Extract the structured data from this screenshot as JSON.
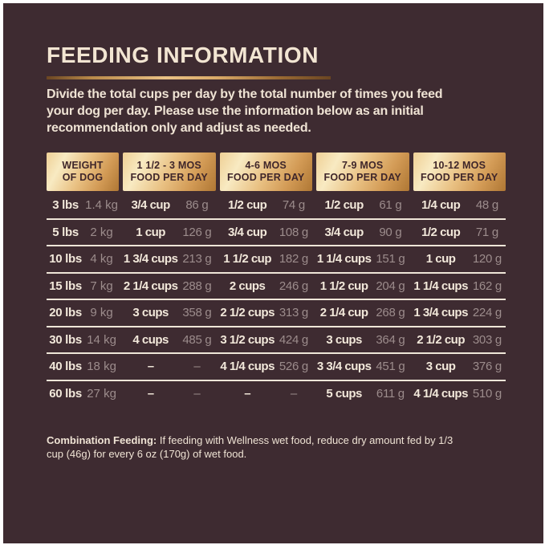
{
  "title": "FEEDING INFORMATION",
  "intro": {
    "line1": "Divide the total cups per day by the total number of times you feed",
    "line2": "your dog per day. Please use the information below as an initial",
    "line3": "recommendation only and adjust as needed."
  },
  "table": {
    "headers": [
      {
        "line1": "WEIGHT",
        "line2": "OF DOG"
      },
      {
        "line1": "1 1/2 - 3 MOS",
        "line2": "FOOD PER DAY"
      },
      {
        "line1": "4-6 MOS",
        "line2": "FOOD PER DAY"
      },
      {
        "line1": "7-9 MOS",
        "line2": "FOOD PER DAY"
      },
      {
        "line1": "10-12 MOS",
        "line2": "FOOD PER DAY"
      }
    ],
    "rows": [
      {
        "lbs": "3 lbs",
        "kg": "1.4 kg",
        "c1": "3/4 cup",
        "g1": "86 g",
        "c2": "1/2 cup",
        "g2": "74 g",
        "c3": "1/2 cup",
        "g3": "61 g",
        "c4": "1/4 cup",
        "g4": "48 g"
      },
      {
        "lbs": "5 lbs",
        "kg": "2 kg",
        "c1": "1 cup",
        "g1": "126 g",
        "c2": "3/4 cup",
        "g2": "108 g",
        "c3": "3/4 cup",
        "g3": "90 g",
        "c4": "1/2 cup",
        "g4": "71 g"
      },
      {
        "lbs": "10 lbs",
        "kg": "4 kg",
        "c1": "1 3/4 cups",
        "g1": "213 g",
        "c2": "1 1/2 cup",
        "g2": "182 g",
        "c3": "1 1/4 cups",
        "g3": "151 g",
        "c4": "1 cup",
        "g4": "120 g"
      },
      {
        "lbs": "15 lbs",
        "kg": "7 kg",
        "c1": "2 1/4 cups",
        "g1": "288 g",
        "c2": "2 cups",
        "g2": "246 g",
        "c3": "1 1/2 cup",
        "g3": "204 g",
        "c4": "1 1/4 cups",
        "g4": "162 g"
      },
      {
        "lbs": "20 lbs",
        "kg": "9 kg",
        "c1": "3 cups",
        "g1": "358 g",
        "c2": "2 1/2 cups",
        "g2": "313 g",
        "c3": "2 1/4 cup",
        "g3": "268 g",
        "c4": "1 3/4 cups",
        "g4": "224 g"
      },
      {
        "lbs": "30 lbs",
        "kg": "14 kg",
        "c1": "4 cups",
        "g1": "485 g",
        "c2": "3 1/2 cups",
        "g2": "424 g",
        "c3": "3 cups",
        "g3": "364 g",
        "c4": "2 1/2 cup",
        "g4": "303 g"
      },
      {
        "lbs": "40 lbs",
        "kg": "18 kg",
        "c1": "–",
        "g1": "–",
        "c2": "4 1/4 cups",
        "g2": "526 g",
        "c3": "3 3/4 cups",
        "g3": "451 g",
        "c4": "3 cup",
        "g4": "376 g"
      },
      {
        "lbs": "60 lbs",
        "kg": "27 kg",
        "c1": "–",
        "g1": "–",
        "c2": "–",
        "g2": "–",
        "c3": "5 cups",
        "g3": "611 g",
        "c4": "4 1/4 cups",
        "g4": "510 g"
      }
    ]
  },
  "note": {
    "label": "Combination Feeding:",
    "line1": "If feeding with Wellness wet food, reduce dry amount fed by 1/3",
    "line2": "cup (46g) for every 6 oz (170g) of wet food."
  },
  "colors": {
    "frame": "#FFFFFF",
    "panel_background": "#3E2B31",
    "cream_text": "#F2E8DA",
    "muted_text": "#9C8C8C",
    "gold_light": "#F8EAC2",
    "gold_dark": "#AF7734",
    "header_text": "#3F262A",
    "divider": "#EFE6D8"
  }
}
